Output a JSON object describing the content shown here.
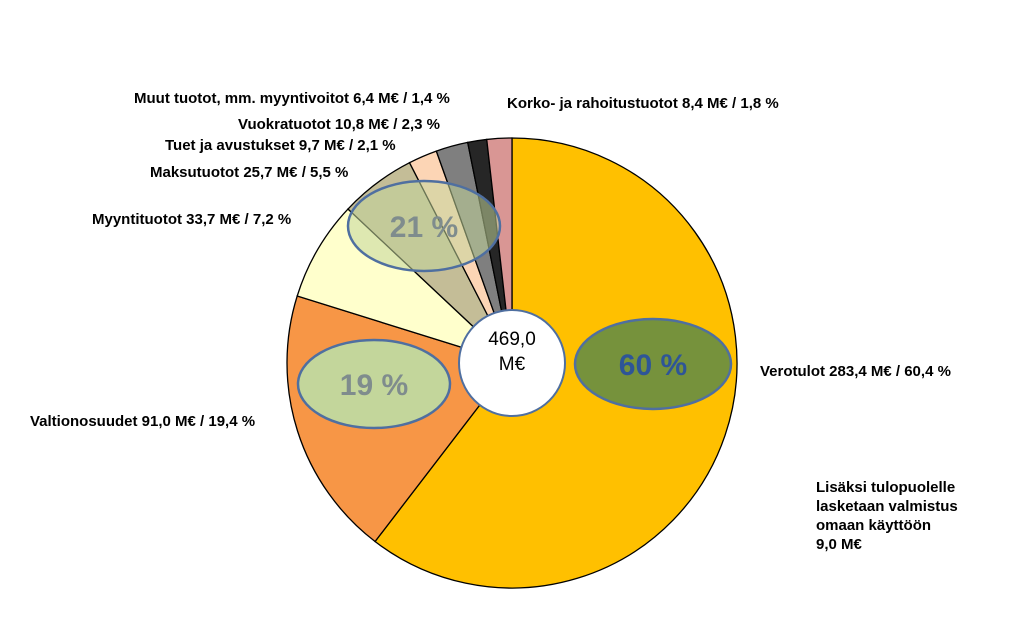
{
  "chart_data": {
    "type": "pie",
    "center_label": [
      "469,0",
      "M€"
    ],
    "start_angle_deg": 0,
    "direction": "clockwise",
    "slices": [
      {
        "label": "Verotulot 283,4 M€ / 60,4 %",
        "value": 283.4,
        "percent": 60.4,
        "color": "#FFC000"
      },
      {
        "label": "Valtionosuudet 91,0 M€ / 19,4 %",
        "value": 91.0,
        "percent": 19.4,
        "color": "#F79646"
      },
      {
        "label": "Myyntituotot 33,7 M€ / 7,2 %",
        "value": 33.7,
        "percent": 7.2,
        "color": "#FFFFCC"
      },
      {
        "label": "Maksutuotot 25,7 M€ / 5,5 %",
        "value": 25.7,
        "percent": 5.5,
        "color": "#C4BD97"
      },
      {
        "label": "Tuet ja avustukset 9,7 M€ / 2,1 %",
        "value": 9.7,
        "percent": 2.1,
        "color": "#FCD5B5"
      },
      {
        "label": "Vuokratuotot 10,8 M€ / 2,3 %",
        "value": 10.8,
        "percent": 2.3,
        "color": "#7F7F7F"
      },
      {
        "label": "Muut tuotot, mm. myyntivoitot 6,4 M€ / 1,4 %",
        "value": 6.4,
        "percent": 1.4,
        "color": "#262626"
      },
      {
        "label": "Korko- ja rahoitustuotot 8,4 M€ / 1,8 %",
        "value": 8.4,
        "percent": 1.8,
        "color": "#D99694"
      }
    ],
    "group_ovals": [
      {
        "text": "60 %",
        "fill": "#76923C",
        "text_color": "#2E5597"
      },
      {
        "text": "19 %",
        "fill": "#C3D69B",
        "text_color": "#7F8C8D"
      },
      {
        "text": "21 %",
        "fill": "#C3D69B",
        "text_color": "#7F8C8D",
        "fill_opacity": 0.55
      }
    ]
  },
  "note": {
    "lines": [
      "Lisäksi tulopuolelle",
      "lasketaan valmistus",
      "omaan käyttöön",
      "9,0 M€"
    ]
  }
}
